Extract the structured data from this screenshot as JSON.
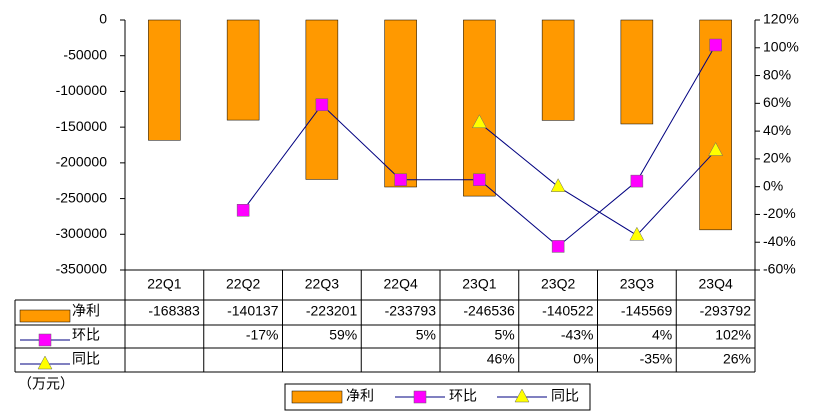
{
  "chart_data": {
    "type": "bar-line",
    "categories": [
      "22Q1",
      "22Q2",
      "22Q3",
      "22Q4",
      "23Q1",
      "23Q2",
      "23Q3",
      "23Q4"
    ],
    "series": [
      {
        "name": "净利",
        "color": "#ff9900",
        "type": "bar",
        "values": [
          -168383,
          -140137,
          -223201,
          -233793,
          -246536,
          -140522,
          -145569,
          -293792
        ]
      },
      {
        "name": "环比",
        "color": "#ff00ff",
        "line_color": "#000080",
        "type": "line",
        "marker": "square",
        "axis": "y2",
        "values": [
          null,
          -17,
          59,
          5,
          5,
          -43,
          4,
          102
        ],
        "value_labels": [
          null,
          "-17%",
          "59%",
          "5%",
          "5%",
          "-43%",
          "4%",
          "102%"
        ]
      },
      {
        "name": "同比",
        "color": "#ffff00",
        "line_color": "#000080",
        "type": "line",
        "marker": "triangle",
        "axis": "y2",
        "values": [
          null,
          null,
          null,
          null,
          46,
          0,
          -35,
          26
        ],
        "value_labels": [
          null,
          null,
          null,
          null,
          "46%",
          "0%",
          "-35%",
          "26%"
        ]
      }
    ],
    "ylim": [
      -350000,
      0
    ],
    "yticks": [
      0,
      -50000,
      -100000,
      -150000,
      -200000,
      -250000,
      -300000,
      -350000
    ],
    "y2lim": [
      -60,
      120
    ],
    "y2ticks": [
      {
        "value": 120,
        "label": "120%"
      },
      {
        "value": 100,
        "label": "100%"
      },
      {
        "value": 80,
        "label": "80%"
      },
      {
        "value": 60,
        "label": "60%"
      },
      {
        "value": 40,
        "label": "40%"
      },
      {
        "value": 20,
        "label": "20%"
      },
      {
        "value": 0,
        "label": "0%"
      },
      {
        "value": -20,
        "label": "-20%"
      },
      {
        "value": -40,
        "label": "-40%"
      },
      {
        "value": -60,
        "label": "-60%"
      }
    ],
    "unit": "（万元）",
    "legend": "bottom"
  }
}
